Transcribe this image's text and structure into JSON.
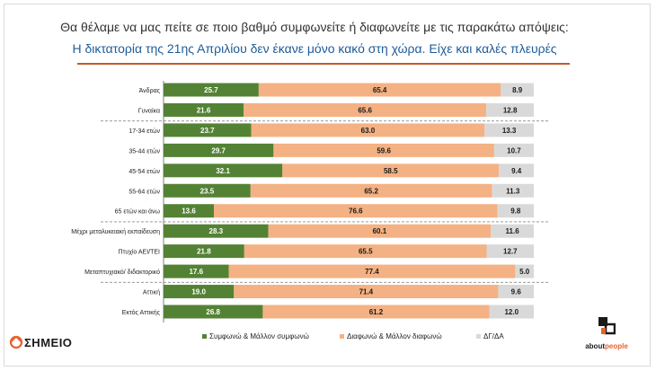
{
  "header": {
    "title": "Θα θέλαμε να μας πείτε σε ποιο βαθμό συμφωνείτε ή διαφωνείτε με τις παρακάτω απόψεις:",
    "subtitle": "Η δικτατορία της 21ης Απριλίου δεν έκανε μόνο κακό στη χώρα. Είχε και καλές πλευρές"
  },
  "chart_data": {
    "type": "bar",
    "orientation": "horizontal",
    "stacked": true,
    "categories": [
      "Άνδρας",
      "Γυναίκα",
      "17-34 ετών",
      "35-44 ετών",
      "45-54 ετών",
      "55-64 ετών",
      "65 ετών και άνω",
      "Μέχρι μεταλυκειακή εκπαίδευση",
      "Πτυχίο ΑΕΙ/ΤΕΙ",
      "Μεταπτυχιακό/ διδακτορικό",
      "Αττική",
      "Εκτός Αττικής"
    ],
    "groups_after_index": [
      1,
      6,
      9
    ],
    "series": [
      {
        "name": "Συμφωνώ & Μάλλον συμφωνώ",
        "color": "#548235",
        "values": [
          25.7,
          21.6,
          23.7,
          29.7,
          32.1,
          23.5,
          13.6,
          28.3,
          21.8,
          17.6,
          19.0,
          26.8
        ]
      },
      {
        "name": "Διαφωνώ & Μάλλον διαφωνώ",
        "color": "#f4b183",
        "values": [
          65.4,
          65.6,
          63.0,
          59.6,
          58.5,
          65.2,
          76.6,
          60.1,
          65.5,
          77.4,
          71.4,
          61.2
        ]
      },
      {
        "name": "ΔΓ/ΔΑ",
        "color": "#d9d9d9",
        "values": [
          8.9,
          12.8,
          13.3,
          10.7,
          9.4,
          11.3,
          9.8,
          11.6,
          12.7,
          5.0,
          9.6,
          12.0
        ]
      }
    ],
    "xlim": [
      0,
      100
    ],
    "legend": "bottom",
    "grid": false
  },
  "branding": {
    "left_logo_text": "ΣΗΜΕΙΟ",
    "right_logo_text_a": "about",
    "right_logo_text_b": "people",
    "right_logo_color": "#e8612c"
  }
}
